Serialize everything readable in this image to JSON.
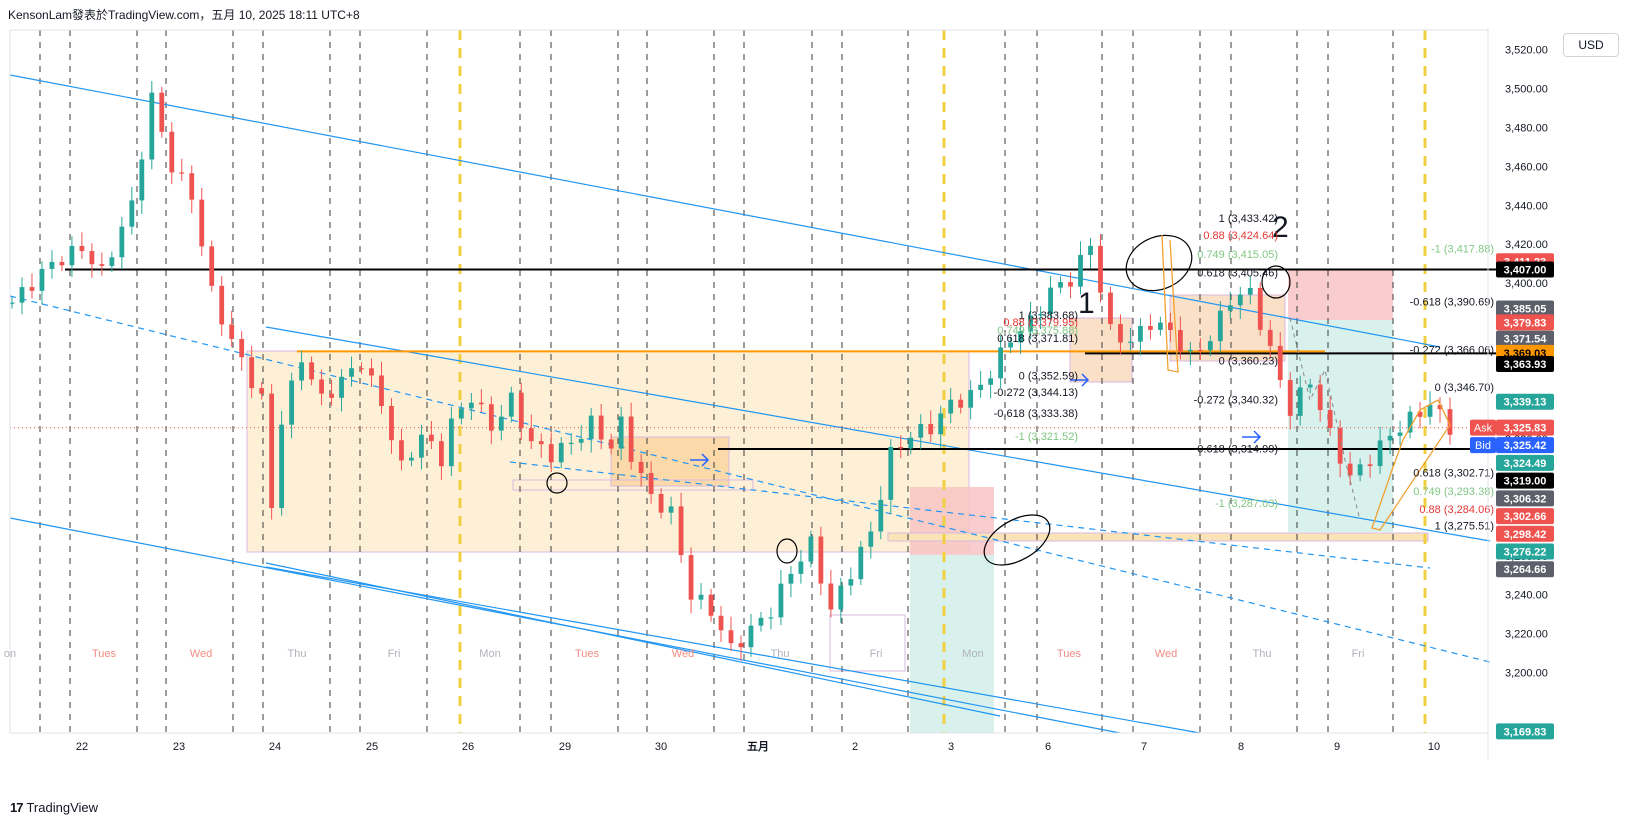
{
  "header": {
    "title": "KensonLam發表於TradingView.com，五月 10, 2025 18:11 UTC+8"
  },
  "currency_button": "USD",
  "footer": {
    "brand": "TradingView",
    "logo_text": "17"
  },
  "colors": {
    "up": "#26a69a",
    "down": "#ef5350",
    "channel": "#2196f3",
    "zone_fill": "#fdebc8",
    "orange_line": "#ff9800",
    "black_line": "#000000",
    "red_zone": "#f8c4c4",
    "green_zone": "#cfeee9",
    "gold_dash": "#f0d040"
  },
  "chart_data": {
    "type": "candlestick",
    "symbol_note": "XAUUSD",
    "xlabel": "",
    "ylabel": "",
    "ylim": [
      3169,
      3530
    ],
    "y_ticks": [
      "3,200.00",
      "3,220.00",
      "3,240.00",
      "3,260.00",
      "3,280.00",
      "3,300.00",
      "3,320.00",
      "3,340.00",
      "3,360.00",
      "3,380.00",
      "3,400.00",
      "3,420.00",
      "3,440.00",
      "3,460.00",
      "3,480.00",
      "3,500.00",
      "3,520.00"
    ],
    "x_ticks": [
      "22",
      "23",
      "24",
      "25",
      "26",
      "29",
      "30",
      "五月",
      "2",
      "3",
      "6",
      "7",
      "8",
      "9",
      "10"
    ],
    "weekday_labels": [
      {
        "text": "on",
        "color": "gray"
      },
      {
        "text": "Tues",
        "color": "red"
      },
      {
        "text": "Wed",
        "color": "red"
      },
      {
        "text": "Thu",
        "color": "gray"
      },
      {
        "text": "Fri",
        "color": "gray"
      },
      {
        "text": "Mon",
        "color": "gray"
      },
      {
        "text": "Tues",
        "color": "red"
      },
      {
        "text": "Wed",
        "color": "red"
      },
      {
        "text": "Thu",
        "color": "gray"
      },
      {
        "text": "Fri",
        "color": "gray"
      },
      {
        "text": "Mon",
        "color": "gray"
      },
      {
        "text": "Tues",
        "color": "red"
      },
      {
        "text": "Wed",
        "color": "red"
      },
      {
        "text": "Thu",
        "color": "gray"
      },
      {
        "text": "Fri",
        "color": "gray"
      }
    ],
    "price_path": [
      [
        0,
        3390
      ],
      [
        4,
        3410
      ],
      [
        7,
        3418
      ],
      [
        9,
        3405
      ],
      [
        12,
        3440
      ],
      [
        14,
        3495
      ],
      [
        16,
        3460
      ],
      [
        18,
        3445
      ],
      [
        20,
        3395
      ],
      [
        22,
        3370
      ],
      [
        24,
        3350
      ],
      [
        25,
        3340
      ],
      [
        26,
        3285
      ],
      [
        27,
        3330
      ],
      [
        29,
        3362
      ],
      [
        31,
        3340
      ],
      [
        33,
        3350
      ],
      [
        35,
        3360
      ],
      [
        37,
        3338
      ],
      [
        39,
        3305
      ],
      [
        41,
        3322
      ],
      [
        43,
        3310
      ],
      [
        44,
        3328
      ],
      [
        46,
        3342
      ],
      [
        48,
        3326
      ],
      [
        50,
        3340
      ],
      [
        52,
        3318
      ],
      [
        54,
        3312
      ],
      [
        56,
        3318
      ],
      [
        58,
        3328
      ],
      [
        59,
        3322
      ],
      [
        60,
        3316
      ],
      [
        61,
        3328
      ],
      [
        62,
        3312
      ],
      [
        64,
        3290
      ],
      [
        66,
        3282
      ],
      [
        68,
        3240
      ],
      [
        70,
        3232
      ],
      [
        72,
        3212
      ],
      [
        74,
        3222
      ],
      [
        76,
        3232
      ],
      [
        78,
        3252
      ],
      [
        80,
        3266
      ],
      [
        82,
        3232
      ],
      [
        84,
        3252
      ],
      [
        86,
        3272
      ],
      [
        88,
        3312
      ],
      [
        90,
        3322
      ],
      [
        92,
        3326
      ],
      [
        94,
        3338
      ],
      [
        96,
        3342
      ],
      [
        98,
        3354
      ],
      [
        100,
        3372
      ],
      [
        102,
        3380
      ],
      [
        104,
        3396
      ],
      [
        106,
        3402
      ],
      [
        108,
        3420
      ],
      [
        110,
        3375
      ],
      [
        112,
        3370
      ],
      [
        114,
        3380
      ],
      [
        116,
        3375
      ],
      [
        118,
        3362
      ],
      [
        120,
        3372
      ],
      [
        122,
        3392
      ],
      [
        124,
        3395
      ],
      [
        126,
        3365
      ],
      [
        128,
        3335
      ],
      [
        130,
        3350
      ],
      [
        132,
        3322
      ],
      [
        134,
        3300
      ],
      [
        136,
        3310
      ],
      [
        138,
        3322
      ],
      [
        140,
        3330
      ],
      [
        142,
        3338
      ],
      [
        144,
        3326
      ]
    ],
    "candle_count": 145,
    "horizontal_levels": [
      {
        "price": 3407.0,
        "color": "black"
      },
      {
        "price": 3363.93,
        "color": "black"
      },
      {
        "price": 3318.5,
        "color": "black"
      },
      {
        "price": 3365.0,
        "color": "orange"
      }
    ],
    "fib_labels_1": [
      {
        "text": "1 (3,383.68)",
        "price": 3383.68,
        "color": "#131722"
      },
      {
        "text": "0.88 (3,379.95)",
        "price": 3379.95,
        "color": "#e53935"
      },
      {
        "text": "0.749 (3,375.88)",
        "price": 3375.88,
        "color": "#81c784"
      },
      {
        "text": "0.618 (3,371.81)",
        "price": 3371.81,
        "color": "#131722"
      },
      {
        "text": "0 (3,352.59)",
        "price": 3352.59,
        "color": "#131722"
      },
      {
        "text": "-0.272 (3,344.13)",
        "price": 3344.13,
        "color": "#131722"
      },
      {
        "text": "-0.618 (3,333.38)",
        "price": 3333.38,
        "color": "#131722"
      },
      {
        "text": "-1 (3,321.52)",
        "price": 3321.52,
        "color": "#81c784"
      }
    ],
    "fib_labels_2": [
      {
        "text": "1 (3,433.42)",
        "price": 3433.42,
        "color": "#131722"
      },
      {
        "text": "0.88 (3,424.64)",
        "price": 3424.64,
        "color": "#e53935"
      },
      {
        "text": "0.749 (3,415.05)",
        "price": 3415.05,
        "color": "#81c784"
      },
      {
        "text": "0.618 (3,405.46)",
        "price": 3405.46,
        "color": "#131722"
      },
      {
        "text": "0 (3,360.23)",
        "price": 3360.23,
        "color": "#131722"
      },
      {
        "text": "-0.272 (3,340.32)",
        "price": 3340.32,
        "color": "#131722"
      },
      {
        "text": "-0.618 (3,314.99)",
        "price": 3314.99,
        "color": "#131722"
      },
      {
        "text": "-1 (3,287.03)",
        "price": 3287.03,
        "color": "#81c784"
      }
    ],
    "fib_labels_3": [
      {
        "text": "-1 (3,417.88)",
        "price": 3417.88,
        "color": "#81c784"
      },
      {
        "text": "-0.618 (3,390.69)",
        "price": 3390.69,
        "color": "#131722"
      },
      {
        "text": "-0.272 (3,366.06)",
        "price": 3366.06,
        "color": "#131722"
      },
      {
        "text": "0 (3,346.70)",
        "price": 3346.7,
        "color": "#131722"
      },
      {
        "text": "0.618 (3,302.71)",
        "price": 3302.71,
        "color": "#131722"
      },
      {
        "text": "0.749 (3,293.38)",
        "price": 3293.38,
        "color": "#81c784"
      },
      {
        "text": "0.88 (3,284.06)",
        "price": 3284.06,
        "color": "#e53935"
      },
      {
        "text": "1 (3,275.51)",
        "price": 3275.51,
        "color": "#131722"
      }
    ],
    "annotations": [
      {
        "text": "1"
      },
      {
        "text": "2"
      }
    ],
    "price_badges": [
      {
        "text": "3,411.23",
        "price": 3411.23,
        "bg": "#ef5350",
        "fg": "#ffffff"
      },
      {
        "text": "3,407.00",
        "price": 3407.0,
        "bg": "#000000",
        "fg": "#ffffff"
      },
      {
        "text": "3,385.05",
        "price": 3387.0,
        "bg": "#5d606b",
        "fg": "#ffffff"
      },
      {
        "text": "3,379.83",
        "price": 3379.83,
        "bg": "#ef5350",
        "fg": "#ffffff"
      },
      {
        "text": "3,371.54",
        "price": 3371.54,
        "bg": "#5d606b",
        "fg": "#ffffff"
      },
      {
        "text": "3,369.03",
        "price": 3364.2,
        "bg": "#ff9800",
        "fg": "#000000"
      },
      {
        "text": "3,363.93",
        "price": 3358.5,
        "bg": "#000000",
        "fg": "#ffffff"
      },
      {
        "text": "3,339.13",
        "price": 3339.13,
        "bg": "#26a69a",
        "fg": "#ffffff"
      },
      {
        "text": "3,325.83",
        "price": 3325.83,
        "bg": "#ef5350",
        "fg": "#ffffff"
      },
      {
        "text": "3,325.42",
        "price": 3316.8,
        "bg": "#2962ff",
        "fg": "#ffffff"
      },
      {
        "text": "3,324.49",
        "price": 3307.7,
        "bg": "#26a69a",
        "fg": "#ffffff"
      },
      {
        "text": "3,319.00",
        "price": 3298.6,
        "bg": "#000000",
        "fg": "#ffffff"
      },
      {
        "text": "3,306.32",
        "price": 3289.5,
        "bg": "#5d606b",
        "fg": "#ffffff"
      },
      {
        "text": "3,302.66",
        "price": 3280.4,
        "bg": "#ef5350",
        "fg": "#ffffff"
      },
      {
        "text": "3,298.42",
        "price": 3271.3,
        "bg": "#ef5350",
        "fg": "#ffffff"
      },
      {
        "text": "3,276.22",
        "price": 3262.2,
        "bg": "#26a69a",
        "fg": "#ffffff"
      },
      {
        "text": "3,264.66",
        "price": 3253.1,
        "bg": "#5d606b",
        "fg": "#ffffff"
      },
      {
        "text": "3,169.83",
        "price": 3169.83,
        "bg": "#26a69a",
        "fg": "#ffffff"
      }
    ],
    "side_tags": [
      {
        "text": "Ask",
        "bg": "#ef5350"
      },
      {
        "text": "Bid",
        "bg": "#2962ff"
      }
    ],
    "grid": false,
    "legend": "none"
  }
}
